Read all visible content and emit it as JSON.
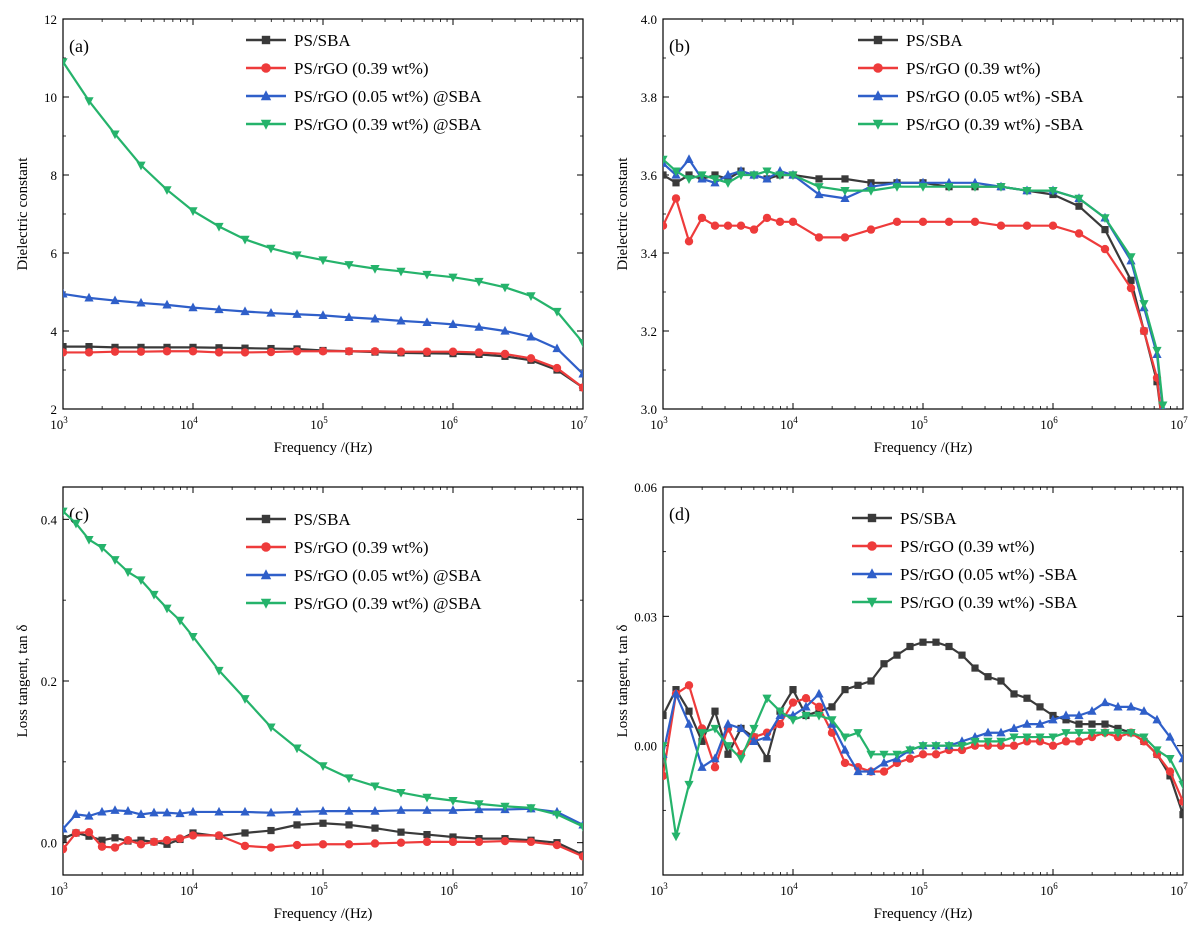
{
  "figure": {
    "x_label": "Frequency /(Hz)",
    "colors": {
      "PS/SBA": "#3a3a3a",
      "PS/rGO (0.39 wt%)": "#ee3b3b",
      "PS/rGO (0.05 wt%)": "#2f5fc9",
      "PS/rGO (0.39 wt%) green": "#25b36b"
    }
  },
  "chart_data": [
    {
      "id": "a",
      "type": "line",
      "panel_label": "(a)",
      "xlabel": "Frequency /(Hz)",
      "ylabel": "Dielectric constant",
      "x_scale": "log",
      "xlim": [
        1000,
        10000000
      ],
      "ylim": [
        2,
        12
      ],
      "yticks": [
        "2",
        "4",
        "6",
        "8",
        "10",
        "12"
      ],
      "ytick_values": [
        2,
        4,
        6,
        8,
        10,
        12
      ],
      "xtick_exponents": [
        "3",
        "4",
        "5",
        "6",
        "7"
      ],
      "xtick_values": [
        1000,
        10000,
        100000,
        1000000,
        10000000
      ],
      "legend_position": "top-right",
      "x": [
        1000,
        1585,
        2512,
        3981,
        6310,
        10000,
        15850,
        25120,
        39810,
        63100,
        100000,
        158500,
        251200,
        398100,
        631000,
        1000000,
        1585000,
        2512000,
        3981000,
        6310000,
        10000000
      ],
      "series": [
        {
          "name": "PS/SBA",
          "color": "#3a3a3a",
          "marker": "square",
          "values": [
            3.6,
            3.6,
            3.58,
            3.58,
            3.58,
            3.58,
            3.57,
            3.56,
            3.55,
            3.54,
            3.5,
            3.48,
            3.46,
            3.44,
            3.43,
            3.42,
            3.4,
            3.35,
            3.25,
            3.0,
            2.55
          ]
        },
        {
          "name": "PS/rGO (0.39 wt%)",
          "color": "#ee3b3b",
          "marker": "circle",
          "values": [
            3.45,
            3.45,
            3.47,
            3.47,
            3.48,
            3.48,
            3.45,
            3.45,
            3.46,
            3.48,
            3.48,
            3.48,
            3.48,
            3.47,
            3.47,
            3.47,
            3.45,
            3.41,
            3.3,
            3.05,
            2.55
          ]
        },
        {
          "name": "PS/rGO (0.05 wt%) @SBA",
          "color": "#2f5fc9",
          "marker": "triangle-up",
          "values": [
            4.95,
            4.85,
            4.78,
            4.72,
            4.67,
            4.6,
            4.55,
            4.5,
            4.46,
            4.43,
            4.4,
            4.35,
            4.31,
            4.26,
            4.22,
            4.17,
            4.1,
            4.0,
            3.85,
            3.55,
            2.9
          ]
        },
        {
          "name": "PS/rGO (0.39 wt%) @SBA",
          "color": "#25b36b",
          "marker": "triangle-down",
          "values": [
            10.9,
            9.9,
            9.05,
            8.25,
            7.62,
            7.08,
            6.68,
            6.35,
            6.12,
            5.95,
            5.82,
            5.7,
            5.6,
            5.53,
            5.45,
            5.38,
            5.27,
            5.12,
            4.9,
            4.5,
            3.7
          ]
        }
      ]
    },
    {
      "id": "b",
      "type": "line",
      "panel_label": "(b)",
      "xlabel": "Frequency /(Hz)",
      "ylabel": "Dielectric constant",
      "x_scale": "log",
      "xlim": [
        1000,
        10000000
      ],
      "ylim": [
        3.0,
        4.0
      ],
      "yticks": [
        "3.0",
        "3.2",
        "3.4",
        "3.6",
        "3.8",
        "4.0"
      ],
      "ytick_values": [
        3.0,
        3.2,
        3.4,
        3.6,
        3.8,
        4.0
      ],
      "xtick_exponents": [
        "3",
        "4",
        "5",
        "6",
        "7"
      ],
      "xtick_values": [
        1000,
        10000,
        100000,
        1000000,
        10000000
      ],
      "legend_position": "top-right",
      "x": [
        1000,
        1259,
        1585,
        1995,
        2512,
        3162,
        3981,
        5012,
        6310,
        7943,
        10000,
        15850,
        25120,
        39810,
        63100,
        100000,
        158500,
        251200,
        398100,
        631000,
        1000000,
        1585000,
        2512000,
        3981000,
        5012000,
        6310000,
        7000000,
        7500000
      ],
      "series": [
        {
          "name": "PS/SBA",
          "color": "#3a3a3a",
          "marker": "square",
          "values": [
            3.6,
            3.58,
            3.6,
            3.59,
            3.6,
            3.59,
            3.61,
            3.6,
            3.59,
            3.6,
            3.6,
            3.59,
            3.59,
            3.58,
            3.58,
            3.58,
            3.57,
            3.57,
            3.57,
            3.56,
            3.55,
            3.52,
            3.46,
            3.33,
            3.2,
            3.07,
            2.95,
            2.85
          ]
        },
        {
          "name": "PS/rGO (0.39 wt%)",
          "color": "#ee3b3b",
          "marker": "circle",
          "values": [
            3.47,
            3.54,
            3.43,
            3.49,
            3.47,
            3.47,
            3.47,
            3.46,
            3.49,
            3.48,
            3.48,
            3.44,
            3.44,
            3.46,
            3.48,
            3.48,
            3.48,
            3.48,
            3.47,
            3.47,
            3.47,
            3.45,
            3.41,
            3.31,
            3.2,
            3.08,
            2.95,
            2.85
          ]
        },
        {
          "name": "PS/rGO (0.05 wt%) -SBA",
          "color": "#2f5fc9",
          "marker": "triangle-up",
          "values": [
            3.63,
            3.6,
            3.64,
            3.59,
            3.58,
            3.6,
            3.61,
            3.6,
            3.59,
            3.61,
            3.6,
            3.55,
            3.54,
            3.57,
            3.58,
            3.58,
            3.58,
            3.58,
            3.57,
            3.56,
            3.56,
            3.54,
            3.49,
            3.38,
            3.26,
            3.14,
            3.0,
            2.88
          ]
        },
        {
          "name": "PS/rGO (0.39 wt%) -SBA",
          "color": "#25b36b",
          "marker": "triangle-down",
          "values": [
            3.64,
            3.61,
            3.59,
            3.6,
            3.59,
            3.58,
            3.6,
            3.6,
            3.61,
            3.6,
            3.6,
            3.57,
            3.56,
            3.56,
            3.57,
            3.57,
            3.57,
            3.57,
            3.57,
            3.56,
            3.56,
            3.54,
            3.49,
            3.39,
            3.27,
            3.15,
            3.01,
            2.9
          ]
        }
      ]
    },
    {
      "id": "c",
      "type": "line",
      "panel_label": "(c)",
      "xlabel": "Frequency /(Hz)",
      "ylabel": "Loss tangent, tan δ",
      "x_scale": "log",
      "xlim": [
        1000,
        10000000
      ],
      "ylim": [
        -0.04,
        0.44
      ],
      "yticks": [
        "0.0",
        "0.2",
        "0.4"
      ],
      "ytick_values": [
        0.0,
        0.2,
        0.4
      ],
      "xtick_exponents": [
        "3",
        "4",
        "5",
        "6",
        "7"
      ],
      "xtick_values": [
        1000,
        10000,
        100000,
        1000000,
        10000000
      ],
      "legend_position": "top-right",
      "x": [
        1000,
        1259,
        1585,
        1995,
        2512,
        3162,
        3981,
        5012,
        6310,
        7943,
        10000,
        15850,
        25120,
        39810,
        63100,
        100000,
        158500,
        251200,
        398100,
        631000,
        1000000,
        1585000,
        2512000,
        3981000,
        6310000,
        10000000
      ],
      "series": [
        {
          "name": "PS/SBA",
          "color": "#3a3a3a",
          "marker": "square",
          "values": [
            0.005,
            0.012,
            0.008,
            0.003,
            0.006,
            0.002,
            0.003,
            0.001,
            -0.002,
            0.004,
            0.012,
            0.008,
            0.012,
            0.015,
            0.022,
            0.024,
            0.022,
            0.018,
            0.013,
            0.01,
            0.007,
            0.005,
            0.005,
            0.003,
            0.0,
            -0.015
          ]
        },
        {
          "name": "PS/rGO (0.39 wt%)",
          "color": "#ee3b3b",
          "marker": "circle",
          "values": [
            -0.008,
            0.012,
            0.013,
            -0.005,
            -0.006,
            0.003,
            -0.002,
            0.001,
            0.003,
            0.005,
            0.009,
            0.009,
            -0.004,
            -0.006,
            -0.003,
            -0.002,
            -0.002,
            -0.001,
            0.0,
            0.001,
            0.001,
            0.001,
            0.002,
            0.001,
            -0.003,
            -0.017
          ]
        },
        {
          "name": "PS/rGO (0.05 wt%) @SBA",
          "color": "#2f5fc9",
          "marker": "triangle-up",
          "values": [
            0.017,
            0.035,
            0.033,
            0.038,
            0.04,
            0.039,
            0.035,
            0.037,
            0.037,
            0.036,
            0.038,
            0.038,
            0.038,
            0.037,
            0.038,
            0.039,
            0.039,
            0.039,
            0.04,
            0.04,
            0.04,
            0.041,
            0.041,
            0.042,
            0.038,
            0.022
          ]
        },
        {
          "name": "PS/rGO (0.39 wt%) @SBA",
          "color": "#25b36b",
          "marker": "triangle-down",
          "values": [
            0.41,
            0.395,
            0.375,
            0.365,
            0.35,
            0.335,
            0.325,
            0.307,
            0.29,
            0.275,
            0.255,
            0.213,
            0.178,
            0.143,
            0.117,
            0.095,
            0.08,
            0.07,
            0.062,
            0.056,
            0.052,
            0.048,
            0.045,
            0.043,
            0.035,
            0.02
          ]
        }
      ]
    },
    {
      "id": "d",
      "type": "line",
      "panel_label": "(d)",
      "xlabel": "Frequency /(Hz)",
      "ylabel": "Loss tangent, tan δ",
      "x_scale": "log",
      "xlim": [
        1000,
        10000000
      ],
      "ylim": [
        -0.03,
        0.06
      ],
      "yticks": [
        "0.00",
        "0.03",
        "0.06"
      ],
      "ytick_values": [
        0.0,
        0.03,
        0.06
      ],
      "xtick_exponents": [
        "3",
        "4",
        "5",
        "6",
        "7"
      ],
      "xtick_values": [
        1000,
        10000,
        100000,
        1000000,
        10000000
      ],
      "legend_position": "top-right",
      "x": [
        1000,
        1259,
        1585,
        1995,
        2512,
        3162,
        3981,
        5012,
        6310,
        7943,
        10000,
        12590,
        15850,
        19950,
        25120,
        31620,
        39810,
        50120,
        63100,
        79430,
        100000,
        125900,
        158500,
        199500,
        251200,
        316200,
        398100,
        501200,
        631000,
        794300,
        1000000,
        1259000,
        1585000,
        1995000,
        2512000,
        3162000,
        3981000,
        5012000,
        6310000,
        7943000,
        10000000
      ],
      "series": [
        {
          "name": "PS/SBA",
          "color": "#3a3a3a",
          "marker": "square",
          "values": [
            0.007,
            0.013,
            0.008,
            0.001,
            0.008,
            -0.002,
            0.004,
            0.002,
            -0.003,
            0.008,
            0.013,
            0.007,
            0.008,
            0.009,
            0.013,
            0.014,
            0.015,
            0.019,
            0.021,
            0.023,
            0.024,
            0.024,
            0.023,
            0.021,
            0.018,
            0.016,
            0.015,
            0.012,
            0.011,
            0.009,
            0.007,
            0.006,
            0.005,
            0.005,
            0.005,
            0.004,
            0.003,
            0.001,
            -0.002,
            -0.007,
            -0.016
          ]
        },
        {
          "name": "PS/rGO (0.39 wt%)",
          "color": "#ee3b3b",
          "marker": "circle",
          "values": [
            -0.007,
            0.012,
            0.014,
            0.004,
            -0.005,
            0.004,
            -0.002,
            0.002,
            0.003,
            0.005,
            0.01,
            0.011,
            0.009,
            0.003,
            -0.004,
            -0.005,
            -0.006,
            -0.006,
            -0.004,
            -0.003,
            -0.002,
            -0.002,
            -0.001,
            -0.001,
            0.0,
            0.0,
            0.0,
            0.0,
            0.001,
            0.001,
            0.0,
            0.001,
            0.001,
            0.002,
            0.003,
            0.002,
            0.003,
            0.001,
            -0.002,
            -0.006,
            -0.013
          ]
        },
        {
          "name": "PS/rGO (0.05 wt%) -SBA",
          "color": "#2f5fc9",
          "marker": "triangle-up",
          "values": [
            -0.002,
            0.012,
            0.005,
            -0.005,
            -0.003,
            0.005,
            0.004,
            0.001,
            0.002,
            0.007,
            0.007,
            0.009,
            0.012,
            0.005,
            -0.001,
            -0.006,
            -0.006,
            -0.004,
            -0.003,
            -0.001,
            0.0,
            0.0,
            0.0,
            0.001,
            0.002,
            0.003,
            0.003,
            0.004,
            0.005,
            0.005,
            0.006,
            0.007,
            0.007,
            0.008,
            0.01,
            0.009,
            0.009,
            0.008,
            0.006,
            0.002,
            -0.003
          ]
        },
        {
          "name": "PS/rGO (0.39 wt%) -SBA",
          "color": "#25b36b",
          "marker": "triangle-down",
          "values": [
            0.0,
            -0.021,
            -0.009,
            0.003,
            0.004,
            0.0,
            -0.003,
            0.004,
            0.011,
            0.008,
            0.006,
            0.007,
            0.007,
            0.006,
            0.002,
            0.003,
            -0.002,
            -0.002,
            -0.002,
            -0.001,
            0.0,
            0.0,
            0.0,
            0.0,
            0.001,
            0.001,
            0.001,
            0.002,
            0.002,
            0.002,
            0.002,
            0.003,
            0.003,
            0.003,
            0.003,
            0.003,
            0.003,
            0.002,
            -0.001,
            -0.003,
            -0.009
          ]
        }
      ]
    }
  ]
}
